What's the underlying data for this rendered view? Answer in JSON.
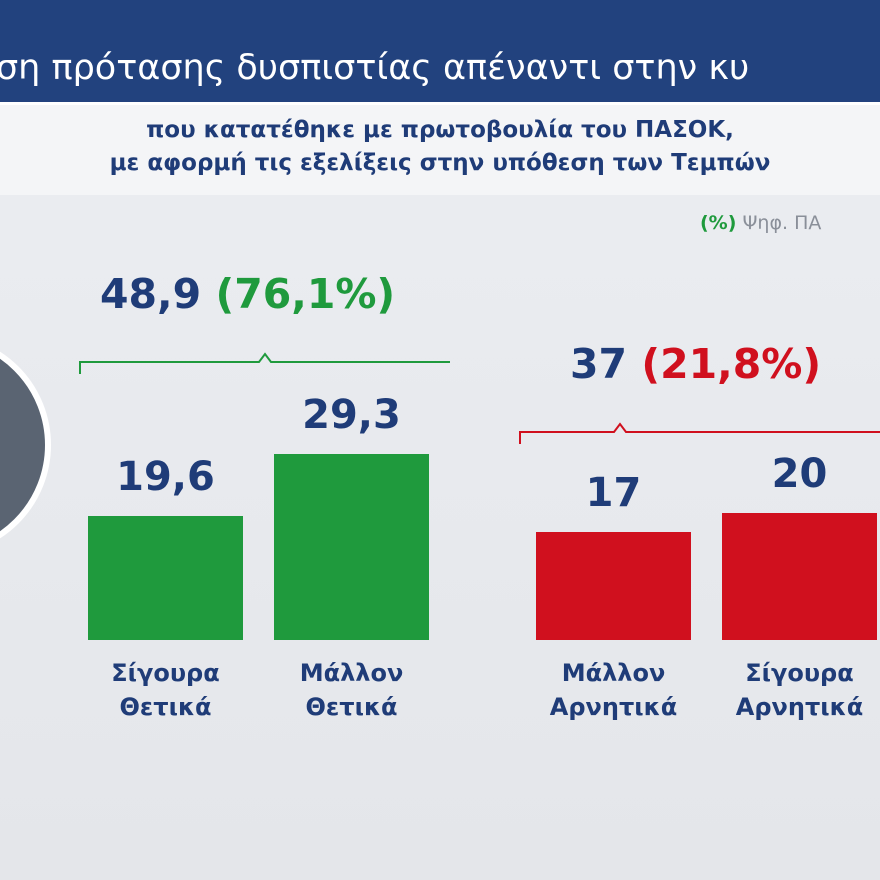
{
  "header": {
    "title": "ση πρότασης δυσπιστίας απέναντι στην κυ",
    "subtitle_lines": [
      "που κατατέθηκε με πρωτοβουλία του ΠΑΣΟΚ,",
      "με αφορμή τις εξελίξεις στην υπόθεση των Τεμπών"
    ]
  },
  "legend_note": {
    "marker": "(%)",
    "text": "Ψηφ. ΠΑ"
  },
  "chart_data": {
    "type": "bar",
    "ylim": [
      0,
      40
    ],
    "groups": [
      {
        "total": 48.9,
        "total_label": "48,9",
        "share": 76.1,
        "share_label": "(76,1%)",
        "color": "#1f9a3d",
        "categories": [
          "Σίγουρα Θετικά",
          "Μάλλον Θετικά"
        ],
        "values": [
          19.6,
          29.3
        ],
        "value_labels": [
          "19,6",
          "29,3"
        ]
      },
      {
        "total": 37,
        "total_label": "37",
        "share": 21.8,
        "share_label": "(21,8%)",
        "color": "#d0101e",
        "categories": [
          "Μάλλον Αρνητικά",
          "Σίγουρα Αρνητικά"
        ],
        "values": [
          17,
          20
        ],
        "value_labels": [
          "17",
          "20"
        ]
      }
    ]
  }
}
